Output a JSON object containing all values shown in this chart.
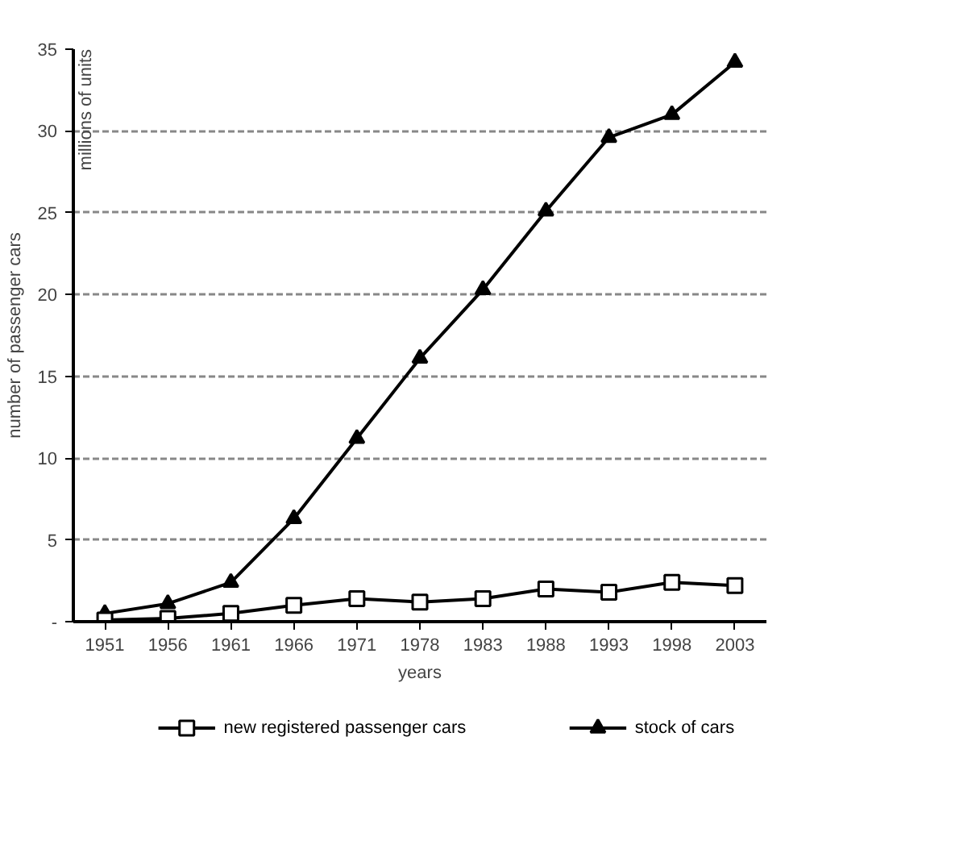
{
  "chart_data": {
    "type": "line",
    "xlabel": "years",
    "ylabel": "number of passenger cars",
    "annotations": [
      "millions of units"
    ],
    "categories": [
      "1951",
      "1956",
      "1961",
      "1966",
      "1971",
      "1978",
      "1983",
      "1988",
      "1993",
      "1998",
      "2003"
    ],
    "series": [
      {
        "name": "new registered passenger cars",
        "color": "#000000",
        "marker": "square",
        "values": [
          0.1,
          0.2,
          0.5,
          1.0,
          1.4,
          1.2,
          1.4,
          2.0,
          1.8,
          2.4,
          2.2
        ]
      },
      {
        "name": "stock of cars",
        "color": "#000000",
        "marker": "triangle",
        "values": [
          0.5,
          1.1,
          2.4,
          6.3,
          11.2,
          16.1,
          20.3,
          25.1,
          29.6,
          31.0,
          34.2
        ]
      }
    ],
    "ylim": [
      0,
      35
    ],
    "yticks": [
      {
        "value": 0,
        "label": "-"
      },
      5,
      10,
      15,
      20,
      25,
      30,
      35
    ],
    "grid": "y",
    "legend": "bottom",
    "line_style": "solid"
  }
}
